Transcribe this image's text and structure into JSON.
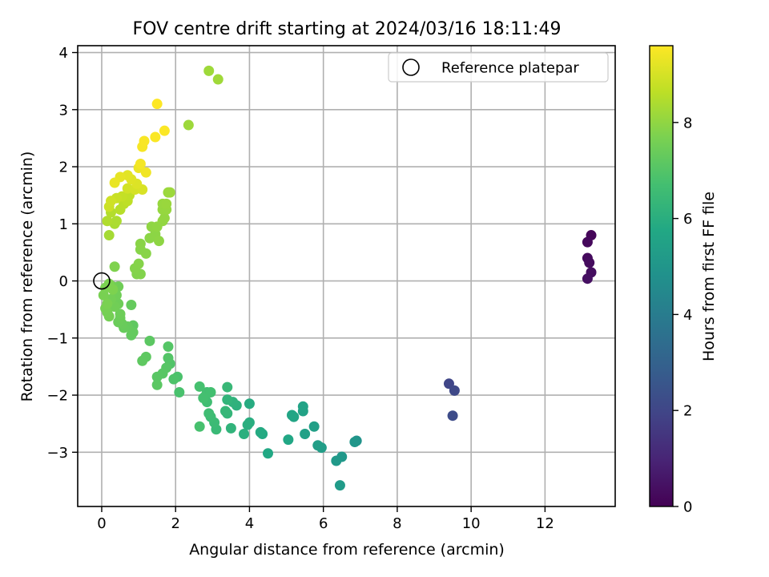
{
  "chart_data": {
    "type": "scatter",
    "title": "FOV centre drift starting at 2024/03/16 18:11:49",
    "xlabel": "Angular distance from reference (arcmin)",
    "ylabel": "Rotation from reference (arcmin)",
    "xlim": [
      -0.65,
      13.9
    ],
    "ylim": [
      -3.95,
      4.12
    ],
    "xticks": [
      0,
      2,
      4,
      6,
      8,
      10,
      12
    ],
    "yticks": [
      -3,
      -2,
      -1,
      0,
      1,
      2,
      3,
      4
    ],
    "grid": true,
    "legend": {
      "placement": "top-right",
      "entries": [
        "Reference platepar"
      ]
    },
    "reference_point": {
      "x": 0,
      "y": 0,
      "label": "Reference platepar"
    },
    "colorbar": {
      "label": "Hours from first FF file",
      "colormap": "viridis",
      "range": [
        0,
        9.6
      ],
      "ticks": [
        0,
        2,
        4,
        6,
        8
      ]
    },
    "points": [
      [
        13.25,
        0.8,
        0.15
      ],
      [
        13.15,
        0.68,
        0.2
      ],
      [
        13.15,
        0.4,
        0.25
      ],
      [
        13.2,
        0.32,
        0.3
      ],
      [
        13.25,
        0.15,
        0.35
      ],
      [
        13.15,
        0.04,
        0.4
      ],
      [
        9.4,
        -1.8,
        2.0
      ],
      [
        9.55,
        -1.92,
        2.1
      ],
      [
        9.5,
        -2.36,
        2.2
      ],
      [
        6.9,
        -2.8,
        4.9
      ],
      [
        6.85,
        -2.82,
        5.0
      ],
      [
        6.5,
        -3.08,
        5.1
      ],
      [
        6.35,
        -3.15,
        5.15
      ],
      [
        6.45,
        -3.58,
        5.2
      ],
      [
        5.95,
        -2.92,
        5.3
      ],
      [
        5.85,
        -2.88,
        5.35
      ],
      [
        5.75,
        -2.55,
        5.4
      ],
      [
        5.5,
        -2.68,
        5.45
      ],
      [
        5.45,
        -2.28,
        5.5
      ],
      [
        5.45,
        -2.2,
        5.55
      ],
      [
        5.2,
        -2.38,
        5.6
      ],
      [
        5.15,
        -2.35,
        5.65
      ],
      [
        5.05,
        -2.78,
        5.7
      ],
      [
        4.5,
        -3.02,
        5.75
      ],
      [
        4.35,
        -2.68,
        5.8
      ],
      [
        4.3,
        -2.65,
        5.85
      ],
      [
        4.0,
        -2.15,
        5.9
      ],
      [
        4.0,
        -2.48,
        5.95
      ],
      [
        3.95,
        -2.52,
        6.0
      ],
      [
        3.85,
        -2.68,
        6.05
      ],
      [
        3.65,
        -2.18,
        6.1
      ],
      [
        3.55,
        -2.12,
        6.15
      ],
      [
        3.5,
        -2.58,
        6.2
      ],
      [
        3.4,
        -2.08,
        6.25
      ],
      [
        3.4,
        -2.32,
        6.3
      ],
      [
        3.35,
        -2.28,
        6.35
      ],
      [
        3.4,
        -1.86,
        6.4
      ],
      [
        3.1,
        -2.6,
        6.45
      ],
      [
        3.05,
        -2.48,
        6.5
      ],
      [
        2.95,
        -2.38,
        6.55
      ],
      [
        2.9,
        -2.32,
        6.6
      ],
      [
        2.85,
        -2.12,
        6.62
      ],
      [
        2.8,
        -2.02,
        6.65
      ],
      [
        2.85,
        -1.95,
        6.68
      ],
      [
        2.95,
        -1.95,
        6.7
      ],
      [
        2.75,
        -2.05,
        6.72
      ],
      [
        2.65,
        -1.85,
        6.75
      ],
      [
        2.65,
        -2.55,
        6.78
      ],
      [
        2.1,
        -1.95,
        6.8
      ],
      [
        2.05,
        -1.68,
        6.85
      ],
      [
        1.95,
        -1.72,
        6.9
      ],
      [
        1.85,
        -1.45,
        6.95
      ],
      [
        1.8,
        -1.35,
        7.0
      ],
      [
        1.8,
        -1.15,
        7.02
      ],
      [
        1.75,
        -1.52,
        7.05
      ],
      [
        1.65,
        -1.62,
        7.08
      ],
      [
        1.5,
        -1.68,
        7.1
      ],
      [
        1.5,
        -1.82,
        7.12
      ],
      [
        1.3,
        -1.05,
        7.15
      ],
      [
        1.2,
        -1.33,
        7.18
      ],
      [
        1.1,
        -1.4,
        7.2
      ],
      [
        0.85,
        -0.78,
        7.22
      ],
      [
        0.8,
        -0.95,
        7.25
      ],
      [
        0.85,
        -0.9,
        7.28
      ],
      [
        0.8,
        -0.42,
        7.3
      ],
      [
        0.7,
        -0.8,
        7.32
      ],
      [
        0.6,
        -0.82,
        7.35
      ],
      [
        0.55,
        -0.75,
        7.38
      ],
      [
        0.45,
        -0.72,
        7.4
      ],
      [
        0.5,
        -0.65,
        7.42
      ],
      [
        0.5,
        -0.58,
        7.44
      ],
      [
        0.45,
        -0.4,
        7.46
      ],
      [
        0.45,
        -0.1,
        7.48
      ],
      [
        0.4,
        -0.25,
        7.5
      ],
      [
        0.35,
        -0.45,
        7.52
      ],
      [
        0.3,
        -0.1,
        7.54
      ],
      [
        0.25,
        -0.32,
        7.56
      ],
      [
        0.2,
        -0.62,
        7.58
      ],
      [
        0.15,
        -0.55,
        7.6
      ],
      [
        0.1,
        -0.48,
        7.62
      ],
      [
        0.05,
        -0.25,
        7.64
      ],
      [
        0.1,
        -0.12,
        7.66
      ],
      [
        0.15,
        -0.4,
        7.68
      ],
      [
        0.2,
        -0.05,
        7.7
      ],
      [
        0.3,
        -0.15,
        7.72
      ],
      [
        0.35,
        0.25,
        7.75
      ],
      [
        0.95,
        0.12,
        7.78
      ],
      [
        1.05,
        0.12,
        7.8
      ],
      [
        0.9,
        0.22,
        7.82
      ],
      [
        1.0,
        0.3,
        7.84
      ],
      [
        1.05,
        0.55,
        7.86
      ],
      [
        1.2,
        0.48,
        7.88
      ],
      [
        1.05,
        0.65,
        7.9
      ],
      [
        1.3,
        0.75,
        7.92
      ],
      [
        1.45,
        0.82,
        7.94
      ],
      [
        1.55,
        0.7,
        7.96
      ],
      [
        1.35,
        0.95,
        7.98
      ],
      [
        1.5,
        0.95,
        8.0
      ],
      [
        1.65,
        1.05,
        8.02
      ],
      [
        1.7,
        1.1,
        8.04
      ],
      [
        1.65,
        1.25,
        8.06
      ],
      [
        1.75,
        1.25,
        8.08
      ],
      [
        1.65,
        1.35,
        8.1
      ],
      [
        1.75,
        1.35,
        8.12
      ],
      [
        1.8,
        1.55,
        8.14
      ],
      [
        1.85,
        1.55,
        8.16
      ],
      [
        2.35,
        2.73,
        8.18
      ],
      [
        2.9,
        3.68,
        8.2
      ],
      [
        3.15,
        3.53,
        8.22
      ],
      [
        0.2,
        0.8,
        8.3
      ],
      [
        0.35,
        1.0,
        8.35
      ],
      [
        0.4,
        1.05,
        8.4
      ],
      [
        0.15,
        1.05,
        8.45
      ],
      [
        0.25,
        1.2,
        8.5
      ],
      [
        0.5,
        1.25,
        8.55
      ],
      [
        0.6,
        1.35,
        8.6
      ],
      [
        0.7,
        1.4,
        8.65
      ],
      [
        0.75,
        1.5,
        8.7
      ],
      [
        0.55,
        1.48,
        8.75
      ],
      [
        0.4,
        1.45,
        8.8
      ],
      [
        0.2,
        1.3,
        8.85
      ],
      [
        0.25,
        1.4,
        8.9
      ],
      [
        0.7,
        1.62,
        8.95
      ],
      [
        0.9,
        1.6,
        9.0
      ],
      [
        1.1,
        1.6,
        9.05
      ],
      [
        0.95,
        1.7,
        9.1
      ],
      [
        0.8,
        1.78,
        9.15
      ],
      [
        0.7,
        1.85,
        9.2
      ],
      [
        0.5,
        1.82,
        9.25
      ],
      [
        0.35,
        1.72,
        9.3
      ],
      [
        1.0,
        1.98,
        9.35
      ],
      [
        1.2,
        1.9,
        9.4
      ],
      [
        1.05,
        2.05,
        9.45
      ],
      [
        1.1,
        2.35,
        9.5
      ],
      [
        1.15,
        2.45,
        9.52
      ],
      [
        1.45,
        2.52,
        9.55
      ],
      [
        1.7,
        2.63,
        9.57
      ],
      [
        1.5,
        3.1,
        9.6
      ]
    ]
  }
}
